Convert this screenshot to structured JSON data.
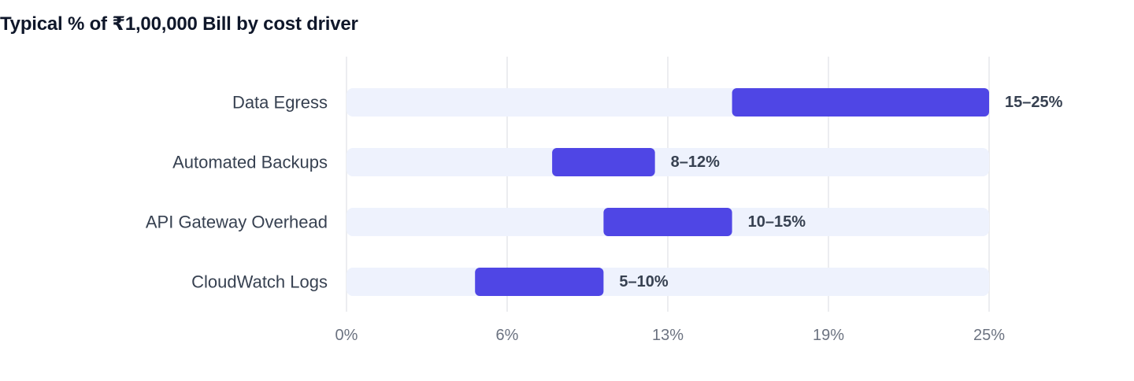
{
  "chart_data": {
    "type": "bar",
    "orientation": "horizontal",
    "chart_style": "floating range bars",
    "title": "Typical % of ₹1,00,000 Bill by cost driver",
    "xlabel": "",
    "ylabel": "",
    "xlim": [
      0,
      25
    ],
    "xticks": [
      "0%",
      "6%",
      "13%",
      "19%",
      "25%"
    ],
    "grid": true,
    "legend": "none",
    "categories": [
      "Data Egress",
      "Automated Backups",
      "API Gateway Overhead",
      "CloudWatch Logs"
    ],
    "series": [
      {
        "values": [
          [
            15,
            25
          ],
          [
            8,
            12
          ],
          [
            10,
            15
          ],
          [
            5,
            10
          ]
        ],
        "labels": [
          "15–25%",
          "8–12%",
          "10–15%",
          "5–10%"
        ]
      }
    ],
    "colors": {
      "bar": "#4f46e5",
      "track": "#eef2fd",
      "grid": "#e5e7eb",
      "title": "#0f172a",
      "label": "#374151",
      "tick": "#6b7280"
    }
  }
}
